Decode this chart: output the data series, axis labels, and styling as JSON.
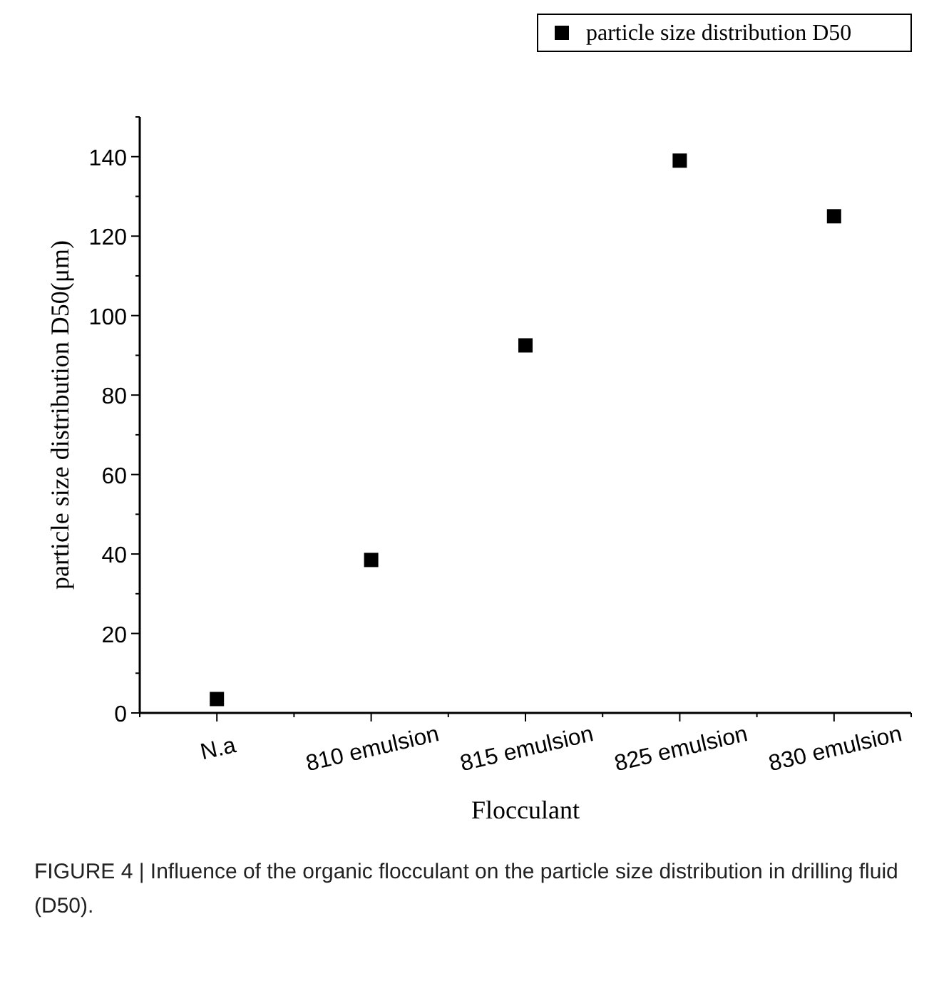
{
  "chart_data": {
    "type": "scatter",
    "xlabel": "Flocculant",
    "ylabel": "particle size distribution D50(μm)",
    "categories": [
      "N.a",
      "810 emulsion",
      "815 emulsion",
      "825 emulsion",
      "830 emulsion"
    ],
    "series": [
      {
        "name": "particle size distribution D50",
        "color": "#000000",
        "values": [
          3.5,
          38.5,
          92.5,
          139,
          125
        ]
      }
    ],
    "ylim": [
      0,
      150
    ],
    "yticks": [
      0,
      20,
      40,
      60,
      80,
      100,
      120,
      140
    ],
    "marker": "square",
    "legend": "top right",
    "grid": false,
    "annotations": [
      "FIGURE 4 | Influence of the organic flocculant on the particle size distribution in drilling fluid (D50)."
    ]
  }
}
